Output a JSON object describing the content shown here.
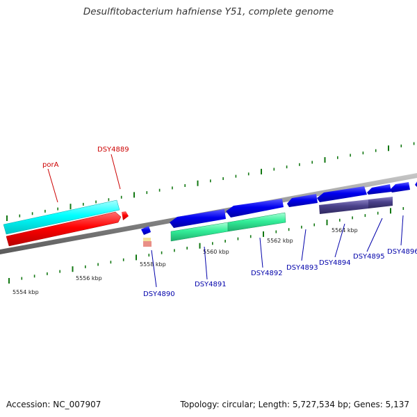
{
  "title": "Desulfitobacterium hafniense Y51, complete genome",
  "footer": {
    "accession": "Accession: NC_007907",
    "topology": "Topology: circular; Length: 5,727,534 bp; Genes: 5,137"
  },
  "colors": {
    "forward_gene": "#0000ee",
    "reverse_gene": "#ff0000",
    "reverse_feature": "#00ffff",
    "forward_feature": "#33ee99",
    "purple_feature": "#4a418a",
    "backbone": "#8a8a8a",
    "tick": "#117711",
    "label_blue": "#0000aa",
    "label_red": "#cc0000"
  },
  "scale_labels": [
    "5554 kbp",
    "5556 kbp",
    "5558 kbp",
    "5560 kbp",
    "5562 kbp",
    "5564 kbp"
  ],
  "labels_red": [
    "porA",
    "DSY4889"
  ],
  "labels_blue": [
    "DSY4890",
    "DSY4891",
    "DSY4892",
    "DSY4893",
    "DSY4894",
    "DSY4895",
    "DSY4896"
  ]
}
